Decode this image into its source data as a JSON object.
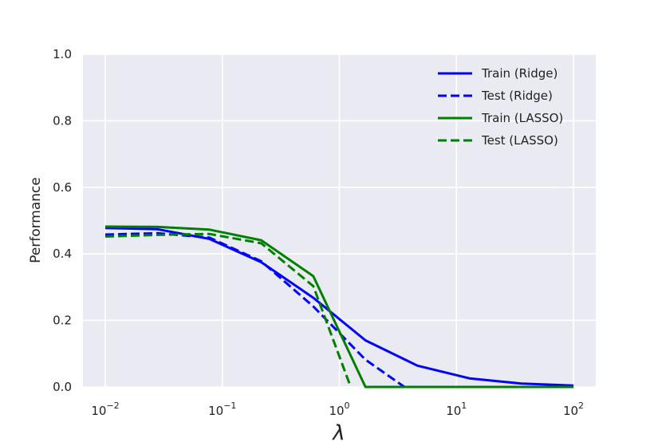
{
  "chart_data": {
    "type": "line",
    "title": "",
    "xlabel": "λ",
    "ylabel": "Performance",
    "xscale": "log",
    "xlim": [
      0.01,
      100
    ],
    "ylim": [
      0,
      1.0
    ],
    "grid": true,
    "legend_position": "top-right",
    "x_ticks": [
      {
        "value": 0.01,
        "base": "10",
        "exp": "−2"
      },
      {
        "value": 0.1,
        "base": "10",
        "exp": "−1"
      },
      {
        "value": 1,
        "base": "10",
        "exp": "0"
      },
      {
        "value": 10,
        "base": "10",
        "exp": "1"
      },
      {
        "value": 100,
        "base": "10",
        "exp": "2"
      }
    ],
    "y_ticks": [
      {
        "value": 0.0,
        "label": "0.0"
      },
      {
        "value": 0.2,
        "label": "0.2"
      },
      {
        "value": 0.4,
        "label": "0.4"
      },
      {
        "value": 0.6,
        "label": "0.6"
      },
      {
        "value": 0.8,
        "label": "0.8"
      },
      {
        "value": 1.0,
        "label": "1.0"
      }
    ],
    "series": [
      {
        "name": "Train (Ridge)",
        "color": "#0000ff",
        "dash": "solid",
        "points": [
          [
            0.01,
            0.478
          ],
          [
            0.0278,
            0.474
          ],
          [
            0.0774,
            0.445
          ],
          [
            0.215,
            0.375
          ],
          [
            0.599,
            0.268
          ],
          [
            1.67,
            0.14
          ],
          [
            4.64,
            0.064
          ],
          [
            12.9,
            0.026
          ],
          [
            35.9,
            0.01
          ],
          [
            100,
            0.004
          ]
        ]
      },
      {
        "name": "Test (Ridge)",
        "color": "#0000ff",
        "dash": "dashed",
        "points": [
          [
            0.01,
            0.458
          ],
          [
            0.0278,
            0.462
          ],
          [
            0.0774,
            0.449
          ],
          [
            0.215,
            0.378
          ],
          [
            0.599,
            0.242
          ],
          [
            1.67,
            0.082
          ],
          [
            3.6,
            0.0
          ]
        ]
      },
      {
        "name": "Train (LASSO)",
        "color": "#008000",
        "dash": "solid",
        "points": [
          [
            0.01,
            0.482
          ],
          [
            0.0278,
            0.481
          ],
          [
            0.0774,
            0.473
          ],
          [
            0.215,
            0.441
          ],
          [
            0.599,
            0.333
          ],
          [
            1.67,
            0.0
          ],
          [
            100,
            0.0
          ]
        ]
      },
      {
        "name": "Test (LASSO)",
        "color": "#008000",
        "dash": "dashed",
        "points": [
          [
            0.01,
            0.452
          ],
          [
            0.0278,
            0.457
          ],
          [
            0.0774,
            0.46
          ],
          [
            0.215,
            0.432
          ],
          [
            0.599,
            0.303
          ],
          [
            1.25,
            0.0
          ]
        ]
      }
    ]
  }
}
